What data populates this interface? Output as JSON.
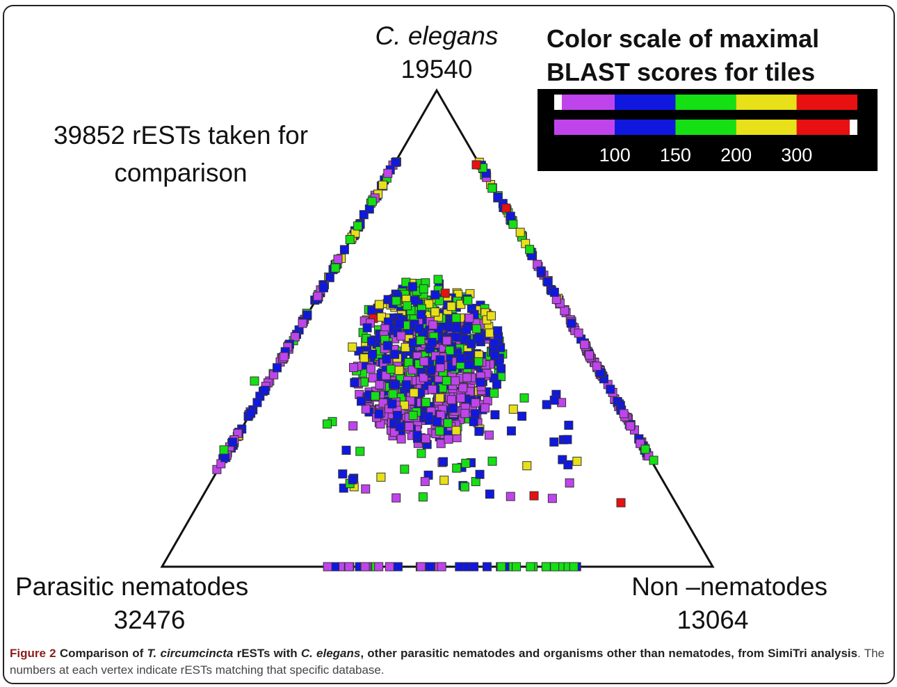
{
  "figure": {
    "vertices": {
      "top": {
        "name": "C. elegans",
        "count": "19540"
      },
      "left": {
        "name": "Parasitic nematodes",
        "count": "32476"
      },
      "right": {
        "name": "Non –nematodes",
        "count": "13064"
      }
    },
    "total_note": "39852 rESTs taken for comparison",
    "legend": {
      "title": "Color scale of maximal BLAST scores for tiles",
      "colors": [
        "#c044ec",
        "#1018e0",
        "#14e014",
        "#e8e018",
        "#e81010"
      ],
      "ticks": [
        100,
        150,
        200,
        300
      ]
    }
  },
  "caption": {
    "label": "Figure 2",
    "segments": [
      "Comparison of ",
      "T. circumcincta",
      " rESTs with ",
      "C. elegans",
      ", other parasitic nematodes and organisms other than nematodes, from SimiTri analysis",
      ". The numbers at each vertex indicate rESTs matching that specific database."
    ]
  }
}
